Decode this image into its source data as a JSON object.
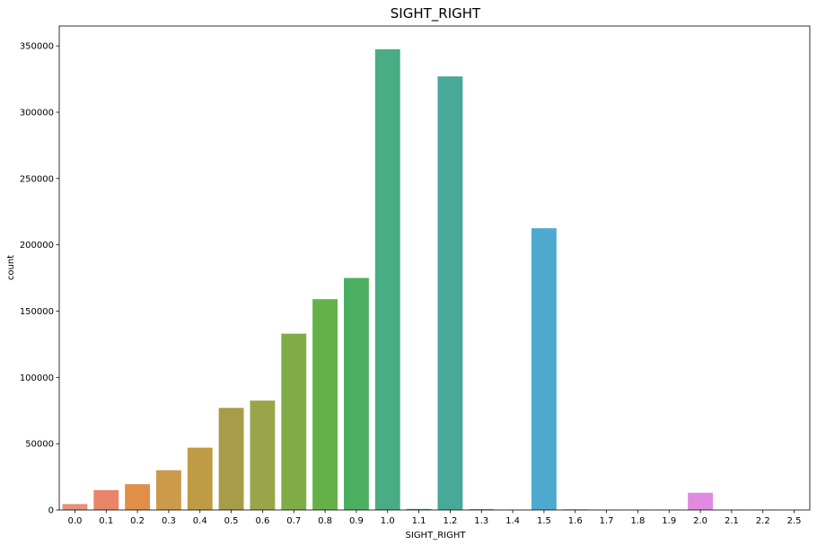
{
  "chart_data": {
    "type": "bar",
    "title": "SIGHT_RIGHT",
    "xlabel": "SIGHT_RIGHT",
    "ylabel": "count",
    "ylim": [
      0,
      365000
    ],
    "yticks": [
      0,
      50000,
      100000,
      150000,
      200000,
      250000,
      300000,
      350000
    ],
    "ytick_labels": [
      "0",
      "50000",
      "100000",
      "150000",
      "200000",
      "250000",
      "300000",
      "350000"
    ],
    "grid": false,
    "legend": "none",
    "categories": [
      "0.0",
      "0.1",
      "0.2",
      "0.3",
      "0.4",
      "0.5",
      "0.6",
      "0.7",
      "0.8",
      "0.9",
      "1.0",
      "1.1",
      "1.2",
      "1.3",
      "1.4",
      "1.5",
      "1.6",
      "1.7",
      "1.8",
      "1.9",
      "2.0",
      "2.1",
      "2.2",
      "2.5"
    ],
    "values": [
      4500,
      15000,
      19500,
      30000,
      47000,
      77000,
      82500,
      133000,
      159000,
      175000,
      347500,
      800,
      327000,
      600,
      200,
      212500,
      500,
      200,
      150,
      120,
      13000,
      80,
      60,
      40
    ],
    "colors": [
      "#e7917f",
      "#e8856b",
      "#e18f47",
      "#cc9a4b",
      "#c09b46",
      "#a89c48",
      "#9aa54a",
      "#80ad48",
      "#64b14a",
      "#4ab060",
      "#49ac84",
      "#47aa8f",
      "#47a998",
      "#48a6a5",
      "#4aa6b2",
      "#4fa9cf",
      "#7aa6ea",
      "#a39ef0",
      "#c293ef",
      "#d886ea",
      "#e08ae0",
      "#e486c8",
      "#e685b9",
      "#e789a8"
    ]
  }
}
